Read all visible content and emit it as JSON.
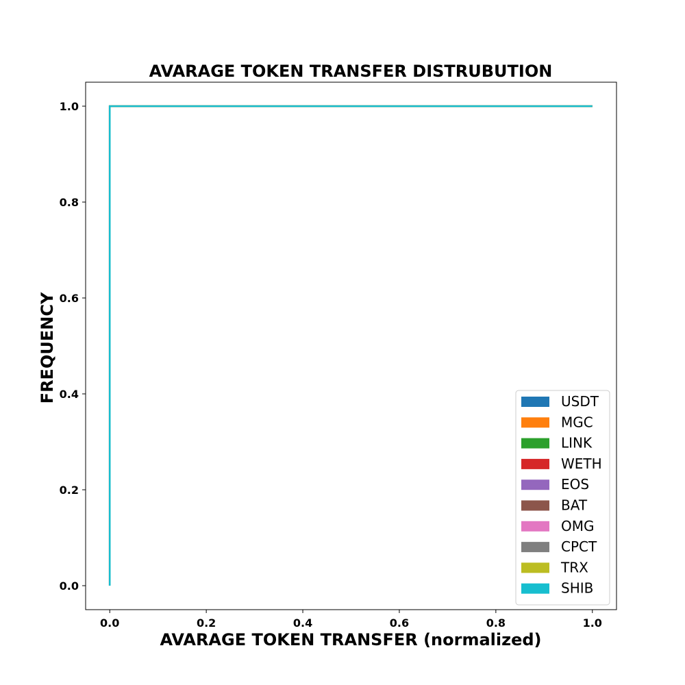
{
  "chart_data": {
    "type": "line",
    "title": "AVARAGE TOKEN TRANSFER DISTRUBUTION",
    "xlabel": "AVARAGE TOKEN TRANSFER (normalized)",
    "ylabel": "FREQUENCY",
    "xlim": [
      -0.05,
      1.05
    ],
    "ylim": [
      -0.05,
      1.05
    ],
    "xticks": [
      "0.0",
      "0.2",
      "0.4",
      "0.6",
      "0.8",
      "1.0"
    ],
    "yticks": [
      "0.0",
      "0.2",
      "0.4",
      "0.6",
      "0.8",
      "1.0"
    ],
    "grid": false,
    "legend_position": "lower-right",
    "series": [
      {
        "name": "USDT",
        "color": "#1f77b4",
        "x": [
          0,
          0,
          1
        ],
        "y": [
          0,
          1,
          1
        ]
      },
      {
        "name": "MGC",
        "color": "#ff7f0e",
        "x": [
          0,
          0,
          1
        ],
        "y": [
          0,
          1,
          1
        ]
      },
      {
        "name": "LINK",
        "color": "#2ca02c",
        "x": [
          0,
          0,
          1
        ],
        "y": [
          0,
          1,
          1
        ]
      },
      {
        "name": "WETH",
        "color": "#d62728",
        "x": [
          0,
          0,
          1
        ],
        "y": [
          0,
          1,
          1
        ]
      },
      {
        "name": "EOS",
        "color": "#9467bd",
        "x": [
          0,
          0,
          1
        ],
        "y": [
          0,
          1,
          1
        ]
      },
      {
        "name": "BAT",
        "color": "#8c564b",
        "x": [
          0,
          0,
          1
        ],
        "y": [
          0,
          1,
          1
        ]
      },
      {
        "name": "OMG",
        "color": "#e377c2",
        "x": [
          0,
          0,
          1
        ],
        "y": [
          0,
          1,
          1
        ]
      },
      {
        "name": "CPCT",
        "color": "#7f7f7f",
        "x": [
          0,
          0,
          1
        ],
        "y": [
          0,
          1,
          1
        ]
      },
      {
        "name": "TRX",
        "color": "#bcbd22",
        "x": [
          0,
          0,
          1
        ],
        "y": [
          0,
          1,
          1
        ]
      },
      {
        "name": "SHIB",
        "color": "#17becf",
        "x": [
          0,
          0,
          1
        ],
        "y": [
          0,
          1,
          1
        ]
      }
    ]
  }
}
